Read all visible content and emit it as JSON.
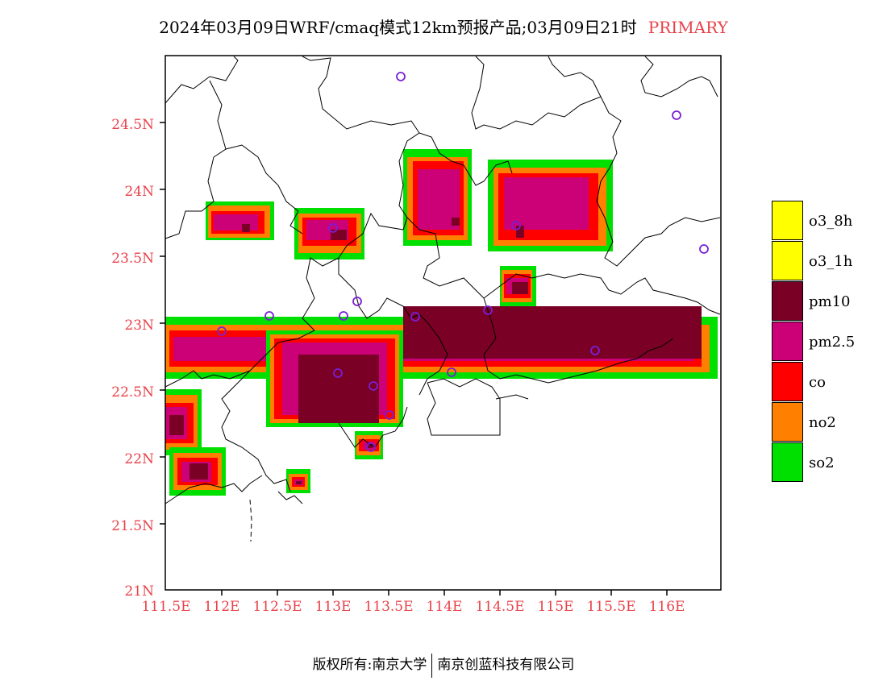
{
  "title": {
    "text": "2024年03月09日WRF/cmaq模式12km预报产品;03月09日21时",
    "tag": "PRIMARY"
  },
  "axes": {
    "y_labels": [
      "24.5N",
      "24N",
      "23.5N",
      "23N",
      "22.5N",
      "22N",
      "21.5N",
      "21N"
    ],
    "x_labels": [
      "111.5E",
      "112E",
      "112.5E",
      "113E",
      "113.5E",
      "114E",
      "114.5E",
      "115E",
      "115.5E",
      "116E"
    ],
    "label_color": "#e8424a"
  },
  "legend": [
    {
      "label": "o3_8h",
      "color": "#ffff00"
    },
    {
      "label": "o3_1h",
      "color": "#ffff00"
    },
    {
      "label": "pm10",
      "color": "#7a0025"
    },
    {
      "label": "pm2.5",
      "color": "#cc0077"
    },
    {
      "label": "co",
      "color": "#ff0000"
    },
    {
      "label": "no2",
      "color": "#ff7f00"
    },
    {
      "label": "so2",
      "color": "#00e000"
    }
  ],
  "footer": {
    "left": "版权所有:南京大学",
    "right": "南京创蓝科技有限公司"
  },
  "station_color": "#7a1fd6"
}
